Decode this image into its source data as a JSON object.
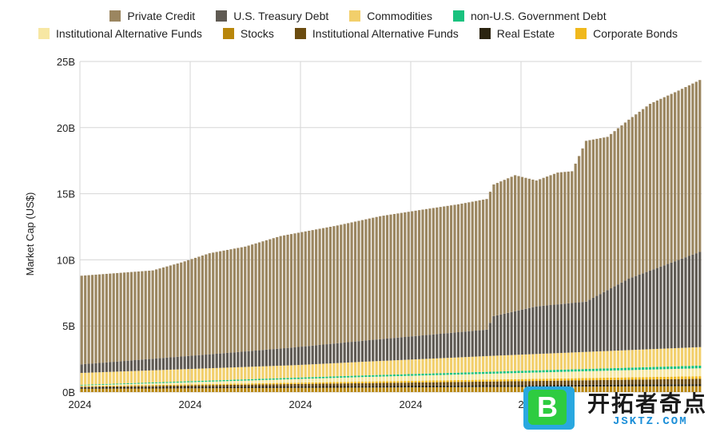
{
  "legend": {
    "row1": [
      {
        "label": "Private Credit",
        "color": "#9b8660"
      },
      {
        "label": "U.S. Treasury Debt",
        "color": "#5f5a53"
      },
      {
        "label": "Commodities",
        "color": "#f2cf6b"
      },
      {
        "label": "non-U.S. Government Debt",
        "color": "#19c27e"
      }
    ],
    "row2": [
      {
        "label": "Institutional Alternative Funds",
        "color": "#f7e7a3"
      },
      {
        "label": "Stocks",
        "color": "#b8860b"
      },
      {
        "label": "Institutional Alternative Funds",
        "color": "#6b4c10"
      },
      {
        "label": "Real Estate",
        "color": "#2b2410"
      },
      {
        "label": "Corporate Bonds",
        "color": "#f0b81c"
      }
    ]
  },
  "watermark": {
    "logo_letter": "B",
    "title": "开拓者奇点",
    "subtitle": "JSKTZ.COM"
  },
  "chart_data": {
    "type": "bar",
    "stacked": true,
    "ylabel": "Market Cap (US$)",
    "yticks": [
      "0B",
      "5B",
      "10B",
      "15B",
      "20B",
      "25B"
    ],
    "ylim": [
      0,
      25
    ],
    "y_unit": "billions USD",
    "xticks": [
      "2024",
      "2024",
      "2024",
      "2024",
      "2",
      "",
      ""
    ],
    "grid": true,
    "legend_position": "top",
    "categories_note": "weekly bars, about 140 periods",
    "series_keyframes": {
      "total": [
        [
          0,
          8.8
        ],
        [
          10,
          9.0
        ],
        [
          20,
          9.2
        ],
        [
          28,
          9.8
        ],
        [
          36,
          10.5
        ],
        [
          46,
          11.0
        ],
        [
          56,
          11.8
        ],
        [
          64,
          12.2
        ],
        [
          72,
          12.6
        ],
        [
          84,
          13.3
        ],
        [
          96,
          13.8
        ],
        [
          106,
          14.2
        ],
        [
          114,
          14.6
        ],
        [
          116,
          15.7
        ],
        [
          122,
          16.4
        ],
        [
          128,
          16.0
        ],
        [
          134,
          16.6
        ],
        [
          138,
          16.7
        ],
        [
          142,
          19.0
        ],
        [
          148,
          19.3
        ],
        [
          154,
          20.6
        ],
        [
          160,
          21.8
        ],
        [
          168,
          22.8
        ],
        [
          174,
          23.6
        ]
      ],
      "Stocks": [
        [
          0,
          0.25
        ],
        [
          174,
          0.45
        ]
      ],
      "Real Estate": [
        [
          0,
          0.1
        ],
        [
          174,
          0.15
        ]
      ],
      "Institutional Alternative Funds (dark)": [
        [
          0,
          0.05
        ],
        [
          174,
          0.4
        ]
      ],
      "Corporate Bonds": [
        [
          0,
          0.05
        ],
        [
          174,
          0.2
        ]
      ],
      "Institutional Alternative Funds (light)": [
        [
          0,
          0.05
        ],
        [
          80,
          0.35
        ],
        [
          174,
          0.6
        ]
      ],
      "non-U.S. Government Debt": [
        [
          0,
          0.05
        ],
        [
          174,
          0.2
        ]
      ],
      "Commodities": [
        [
          0,
          0.9
        ],
        [
          60,
          0.95
        ],
        [
          116,
          1.2
        ],
        [
          174,
          1.4
        ]
      ],
      "U.S. Treasury Debt": [
        [
          0,
          0.65
        ],
        [
          40,
          1.1
        ],
        [
          80,
          1.6
        ],
        [
          114,
          2.0
        ],
        [
          116,
          3.0
        ],
        [
          128,
          3.6
        ],
        [
          142,
          3.8
        ],
        [
          154,
          5.4
        ],
        [
          174,
          7.2
        ]
      ]
    }
  }
}
